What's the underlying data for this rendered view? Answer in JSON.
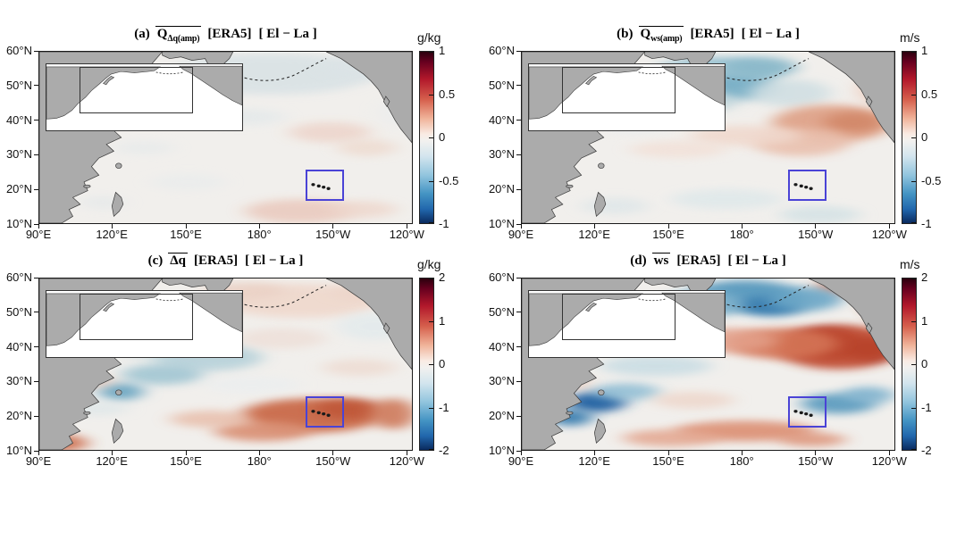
{
  "figure": {
    "background": "#ffffff",
    "land_color": "#ababab",
    "coast_color": "#3a3a3a",
    "ocean_color": "#f1efec",
    "box_color": "#4a43d6",
    "colorbar_gradient": [
      [
        "#2b000e",
        0
      ],
      [
        "#67001f",
        6
      ],
      [
        "#b2182b",
        16
      ],
      [
        "#d6604d",
        28
      ],
      [
        "#f0b49a",
        39
      ],
      [
        "#f9ebe3",
        48
      ],
      [
        "#f2f1ef",
        52
      ],
      [
        "#d3e5ee",
        61
      ],
      [
        "#92c5de",
        72
      ],
      [
        "#4393c3",
        83
      ],
      [
        "#2166ac",
        92
      ],
      [
        "#0a2a5e",
        100
      ]
    ]
  },
  "chart_data": {
    "type": "heatmap",
    "description": "Four-panel North Pacific anomaly maps (El minus La composite, ERA5), each with an inset locator map, a blue highlight box near Hawaii, and a red-blue diverging colorbar.",
    "x_axis": {
      "ticks": [
        "90°E",
        "120°E",
        "150°E",
        "180°",
        "150°W",
        "120°W"
      ],
      "positions_pct": [
        0,
        19.6,
        39.4,
        59.0,
        78.7,
        98.4
      ]
    },
    "y_axis": {
      "ticks": [
        "60°N",
        "50°N",
        "40°N",
        "30°N",
        "20°N",
        "10°N"
      ],
      "positions_pct": [
        0,
        20,
        40,
        60,
        80,
        100
      ]
    },
    "highlight_box": {
      "x_pct": 71.5,
      "y_pct": 69,
      "w_pct": 10.3,
      "h_pct": 18
    },
    "panels": [
      {
        "id": "a",
        "title": {
          "index": "(a)",
          "var": "Q",
          "sub": "Δq(amp)",
          "dataset": "[ERA5]",
          "condition": "[ El − La ]"
        },
        "unit": "g/kg",
        "cbar_range": [
          -1,
          1
        ],
        "cbar_ticks": [
          "1",
          "0.5",
          "0",
          "-0.5",
          "-1"
        ],
        "pattern_summary": "Very weak anomalies: faint positive (warm) patches around and south of the Hawaii box; faint negative (cool) shading over the central/NE North Pacific.",
        "blobs": [
          [
            62,
            13,
            28,
            12,
            "#d9e2e5",
            0.9
          ],
          [
            88,
            9,
            12,
            7,
            "#dbe3e6",
            0.8
          ],
          [
            54,
            38,
            12,
            5,
            "#e2e8ea",
            0.7
          ],
          [
            78,
            47,
            11,
            6,
            "#edd6cc",
            0.9
          ],
          [
            88,
            56,
            8,
            5,
            "#eedacf",
            0.8
          ],
          [
            70,
            93,
            15,
            7,
            "#eacbbf",
            0.9
          ],
          [
            87,
            92,
            9,
            5,
            "#eed7cc",
            0.8
          ],
          [
            40,
            76,
            10,
            5,
            "#e7ebec",
            0.6
          ],
          [
            28,
            56,
            8,
            4,
            "#e4e9ea",
            0.6
          ],
          [
            17,
            88,
            6,
            4,
            "#e2e7e9",
            0.6
          ],
          [
            96,
            35,
            5,
            8,
            "#e8ecee",
            0.5
          ]
        ]
      },
      {
        "id": "b",
        "title": {
          "index": "(b)",
          "var": "Q",
          "sub": "ws(amp)",
          "dataset": "[ERA5]",
          "condition": "[ El − La ]"
        },
        "unit": "m/s",
        "cbar_range": [
          -1,
          1
        ],
        "cbar_ticks": [
          "1",
          "0.5",
          "0",
          "-0.5",
          "-1"
        ],
        "pattern_summary": "Moderate negative (blue) anomalies over the Bering Sea / north-central Pacific; moderate positive (red) anomalies east-northeast of Hawaii toward North America.",
        "blobs": [
          [
            52,
            13,
            17,
            10,
            "#9fc5d3",
            1
          ],
          [
            57,
            21,
            11,
            7,
            "#7db1c7",
            1
          ],
          [
            64,
            9,
            10,
            6,
            "#8cbacb",
            0.95
          ],
          [
            45,
            29,
            13,
            7,
            "#c2d7dd",
            0.9
          ],
          [
            72,
            24,
            11,
            8,
            "#cfdee2",
            0.85
          ],
          [
            83,
            42,
            16,
            11,
            "#e0a78f",
            1
          ],
          [
            89,
            41,
            8,
            6,
            "#d38a6c",
            1
          ],
          [
            75,
            53,
            13,
            8,
            "#e9c0ae",
            0.9
          ],
          [
            60,
            49,
            15,
            6,
            "#f0d8cc",
            0.85
          ],
          [
            42,
            57,
            13,
            5,
            "#f2ded4",
            0.7
          ],
          [
            55,
            86,
            15,
            6,
            "#dfe8ea",
            0.85
          ],
          [
            80,
            95,
            11,
            5,
            "#d4e2e5",
            0.85
          ],
          [
            25,
            90,
            9,
            5,
            "#dce5e8",
            0.7
          ],
          [
            96,
            22,
            6,
            9,
            "#edccbd",
            0.8
          ],
          [
            30,
            43,
            10,
            5,
            "#e9edee",
            0.6
          ]
        ]
      },
      {
        "id": "c",
        "title": {
          "index": "(c)",
          "var": "Δq",
          "sub": "",
          "dataset": "[ERA5]",
          "condition": "[ El − La ]"
        },
        "unit": "g/kg",
        "cbar_range": [
          -2,
          2
        ],
        "cbar_ticks": [
          "2",
          "1",
          "0",
          "-1",
          "-2"
        ],
        "pattern_summary": "Noisy field: strong positive (red) band across the Hawaii box and subtropics to the east; negative (blue) patches over the Kuroshio region, near Taiwan, and mid-Pacific; weak positive in the far north.",
        "blobs": [
          [
            73,
            80,
            19,
            10,
            "#ca6a49",
            0.95
          ],
          [
            83,
            76,
            9,
            6,
            "#bf5737",
            0.9
          ],
          [
            60,
            89,
            13,
            6,
            "#d98f73",
            0.9
          ],
          [
            95,
            79,
            6,
            9,
            "#cf7a5b",
            0.9
          ],
          [
            46,
            82,
            11,
            5,
            "#e7bba7",
            0.8
          ],
          [
            70,
            13,
            22,
            10,
            "#efd7cb",
            0.85
          ],
          [
            55,
            7,
            11,
            5,
            "#ead0c4",
            0.8
          ],
          [
            88,
            8,
            10,
            5,
            "#ecd4c8",
            0.7
          ],
          [
            90,
            28,
            10,
            8,
            "#e2eaec",
            0.8
          ],
          [
            45,
            46,
            15,
            8,
            "#b7d2da",
            0.9
          ],
          [
            33,
            56,
            11,
            6,
            "#a2c6d3",
            0.9
          ],
          [
            22,
            66,
            6,
            5,
            "#74abc5",
            1
          ],
          [
            28,
            41,
            9,
            5,
            "#c8dbe1",
            0.8
          ],
          [
            5,
            96,
            8,
            5,
            "#cc6a4a",
            0.9
          ],
          [
            16,
            76,
            8,
            4,
            "#dce6e8",
            0.7
          ],
          [
            57,
            62,
            13,
            5,
            "#e9eef0",
            0.6
          ],
          [
            86,
            52,
            10,
            5,
            "#edd8cd",
            0.7
          ],
          [
            65,
            35,
            12,
            6,
            "#ecd9d0",
            0.6
          ],
          [
            13,
            60,
            7,
            4,
            "#e6b9a6",
            0.6
          ]
        ]
      },
      {
        "id": "d",
        "title": {
          "index": "(d)",
          "var": "ws",
          "sub": "",
          "dataset": "[ERA5]",
          "condition": "[ El − La ]"
        },
        "unit": "m/s",
        "cbar_range": [
          -2,
          2
        ],
        "cbar_ticks": [
          "2",
          "1",
          "0",
          "-1",
          "-2"
        ],
        "pattern_summary": "Strong signal: two deep-red positive cores northeast of Hawaii (~35°N, 155–140°W) within a broad red band; strong negative (blue) over Bering Sea/Gulf of Alaska, east of the Hawaii box, and near Taiwan/Philippines; red band along the Alaskan coast and in the southern tropics.",
        "blobs": [
          [
            82,
            38,
            9,
            9,
            "#8c1e1a",
            1
          ],
          [
            93,
            41,
            7,
            7,
            "#7c1416",
            1
          ],
          [
            85,
            40,
            17,
            13,
            "#bf4a2e",
            0.9
          ],
          [
            70,
            38,
            15,
            9,
            "#d47456",
            0.9
          ],
          [
            55,
            36,
            13,
            7,
            "#e3a08a",
            0.85
          ],
          [
            98,
            13,
            6,
            11,
            "#c65138",
            0.9
          ],
          [
            90,
            5,
            11,
            5,
            "#d47456",
            0.85
          ],
          [
            60,
            10,
            15,
            9,
            "#5e9dc0",
            1
          ],
          [
            67,
            16,
            9,
            6,
            "#3e80b1",
            1
          ],
          [
            48,
            15,
            11,
            8,
            "#83b4cd",
            0.9
          ],
          [
            76,
            12,
            10,
            7,
            "#6aa6c6",
            0.9
          ],
          [
            85,
            73,
            10,
            6,
            "#5e9dc0",
            0.95
          ],
          [
            93,
            68,
            7,
            5,
            "#82b4cf",
            0.9
          ],
          [
            20,
            72,
            8,
            6,
            "#2c67a5",
            1
          ],
          [
            13,
            81,
            6,
            5,
            "#3e80b1",
            0.95
          ],
          [
            28,
            66,
            9,
            5,
            "#8fbdd4",
            0.85
          ],
          [
            60,
            89,
            19,
            6,
            "#dc8f73",
            0.9
          ],
          [
            40,
            93,
            13,
            5,
            "#e3a68f",
            0.85
          ],
          [
            78,
            94,
            9,
            4,
            "#dc8f73",
            0.8
          ],
          [
            36,
            51,
            15,
            6,
            "#c6dbe3",
            0.8
          ],
          [
            10,
            61,
            8,
            5,
            "#e8c2b0",
            0.7
          ],
          [
            46,
            71,
            11,
            5,
            "#edd2c5",
            0.7
          ],
          [
            30,
            25,
            12,
            7,
            "#dfe8eb",
            0.7
          ],
          [
            8,
            38,
            6,
            5,
            "#d0e0e6",
            0.6
          ]
        ]
      }
    ]
  }
}
